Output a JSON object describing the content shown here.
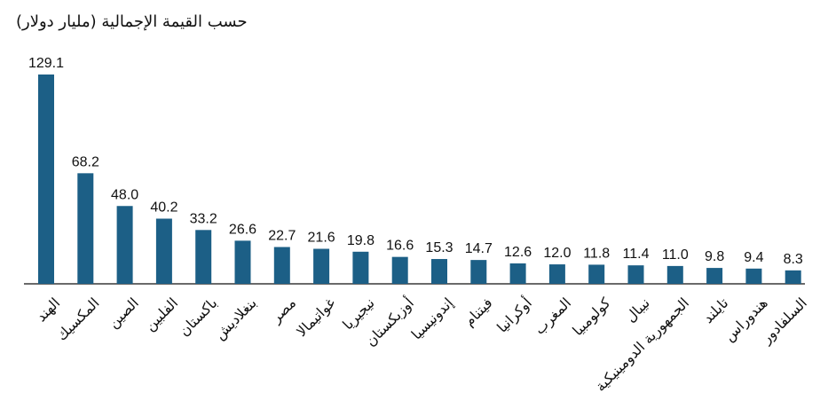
{
  "chart_data": {
    "type": "bar",
    "title": "حسب القيمة الإجمالية (مليار دولار)",
    "categories": [
      "الهند",
      "المكسيك",
      "الصين",
      "الفلبين",
      "باكستان",
      "بنغلاديش",
      "مصر",
      "غواتيمالا",
      "نيجيريا",
      "أوزبكستان",
      "إندونيسيا",
      "فيتنام",
      "أوكرانيا",
      "المغرب",
      "كولومبيا",
      "نيبال",
      "الجمهورية الدومينيكية",
      "تايلند",
      "هندوراس",
      "السلفادور"
    ],
    "values": [
      129.1,
      68.2,
      48.0,
      40.2,
      33.2,
      26.6,
      22.7,
      21.6,
      19.8,
      16.6,
      15.3,
      14.7,
      12.6,
      12.0,
      11.8,
      11.4,
      11.0,
      9.8,
      9.4,
      8.3
    ],
    "value_labels": [
      "129.1",
      "68.2",
      "48.0",
      "40.2",
      "33.2",
      "26.6",
      "22.7",
      "21.6",
      "19.8",
      "16.6",
      "15.3",
      "14.7",
      "12.6",
      "12.0",
      "11.8",
      "11.4",
      "11.0",
      "9.8",
      "9.4",
      "8.3"
    ],
    "xlabel": "",
    "ylabel": "",
    "ylim": [
      0,
      129.1
    ],
    "bar_color": "#1c5f86",
    "axis_color": "#111111",
    "grid": false
  }
}
